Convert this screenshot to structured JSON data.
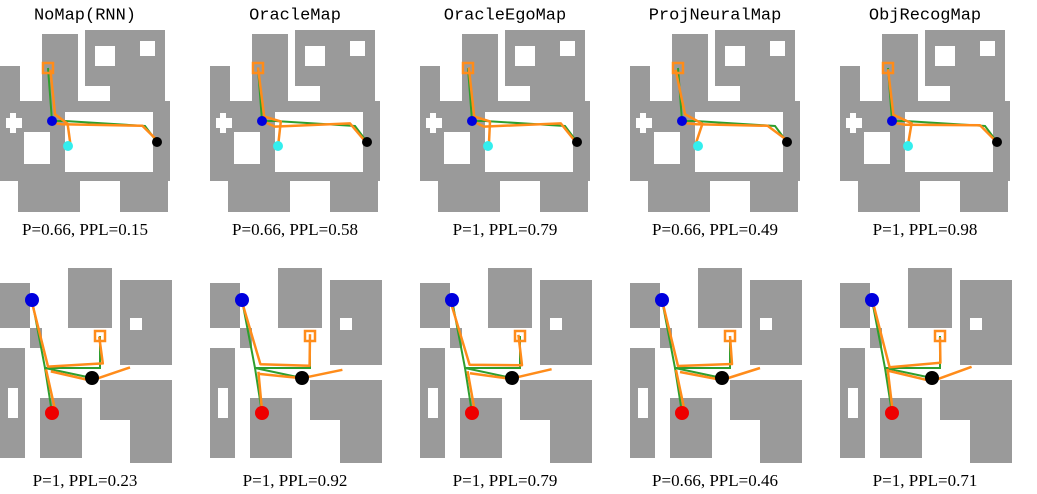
{
  "figure": {
    "columns": [
      "NoMap(RNN)",
      "OracleMap",
      "OracleEgoMap",
      "ProjNeuralMap",
      "ObjRecogMap"
    ],
    "rows": [
      {
        "captions": [
          "P=0.66, PPL=0.15",
          "P=0.66, PPL=0.58",
          "P=1, PPL=0.79",
          "P=0.66, PPL=0.49",
          "P=1, PPL=0.98"
        ]
      },
      {
        "captions": [
          "P=1, PPL=0.23",
          "P=1, PPL=0.92",
          "P=1, PPL=0.79",
          "P=0.66, PPL=0.46",
          "P=1, PPL=0.71"
        ]
      }
    ]
  }
}
